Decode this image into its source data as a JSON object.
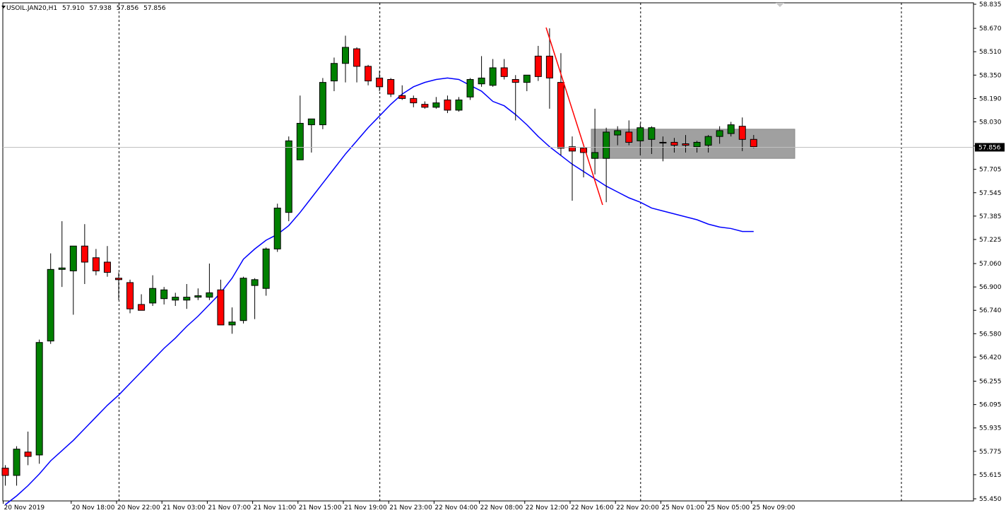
{
  "header": {
    "symbol": "USOIL.JAN20,H1",
    "open": "57.910",
    "high": "57.938",
    "low": "57.856",
    "close": "57.856"
  },
  "colors": {
    "bull": "#008000",
    "bear": "#ff0000",
    "ma": "#0000ff",
    "trendline": "#ff0000",
    "zone": "#a0a0a0",
    "grid": "#000000",
    "price_line": "#c0c0c0"
  },
  "chart_data": {
    "type": "candlestick",
    "ylim": [
      55.45,
      58.835
    ],
    "y_ticks": [
      "58.835",
      "58.670",
      "58.510",
      "58.350",
      "58.190",
      "58.030",
      "57.865",
      "57.705",
      "57.545",
      "57.385",
      "57.225",
      "57.060",
      "56.900",
      "56.740",
      "56.580",
      "56.420",
      "56.255",
      "56.095",
      "55.935",
      "55.775",
      "55.615",
      "55.450"
    ],
    "x_ticks": [
      {
        "label": "20 Nov 2019",
        "index": 0
      },
      {
        "label": "20 Nov 18:00",
        "index": 6
      },
      {
        "label": "20 Nov 22:00",
        "index": 10
      },
      {
        "label": "21 Nov 03:00",
        "index": 14
      },
      {
        "label": "21 Nov 07:00",
        "index": 18
      },
      {
        "label": "21 Nov 11:00",
        "index": 22
      },
      {
        "label": "21 Nov 15:00",
        "index": 26
      },
      {
        "label": "21 Nov 19:00",
        "index": 30
      },
      {
        "label": "21 Nov 23:00",
        "index": 34
      },
      {
        "label": "22 Nov 04:00",
        "index": 38
      },
      {
        "label": "22 Nov 08:00",
        "index": 42
      },
      {
        "label": "22 Nov 12:00",
        "index": 46
      },
      {
        "label": "22 Nov 16:00",
        "index": 50
      },
      {
        "label": "22 Nov 20:00",
        "index": 54
      },
      {
        "label": "25 Nov 01:00",
        "index": 58
      },
      {
        "label": "25 Nov 05:00",
        "index": 62
      },
      {
        "label": "25 Nov 09:00",
        "index": 66
      }
    ],
    "separators": [
      10,
      33,
      56,
      79
    ],
    "current_price": "57.856",
    "candles": [
      [
        55.66,
        55.68,
        55.54,
        55.61
      ],
      [
        55.61,
        55.81,
        55.54,
        55.79
      ],
      [
        55.77,
        55.91,
        55.68,
        55.74
      ],
      [
        55.75,
        56.54,
        55.69,
        56.52
      ],
      [
        56.53,
        57.13,
        56.51,
        57.02
      ],
      [
        57.02,
        57.35,
        56.9,
        57.03
      ],
      [
        57.01,
        57.18,
        56.71,
        57.18
      ],
      [
        57.18,
        57.33,
        56.92,
        57.07
      ],
      [
        57.1,
        57.16,
        56.98,
        57.01
      ],
      [
        57.07,
        57.18,
        56.97,
        57.0
      ],
      [
        56.96,
        57.0,
        56.81,
        56.95
      ],
      [
        56.93,
        56.95,
        56.72,
        56.75
      ],
      [
        56.78,
        56.85,
        56.74,
        56.74
      ],
      [
        56.79,
        56.98,
        56.77,
        56.89
      ],
      [
        56.82,
        56.9,
        56.78,
        56.88
      ],
      [
        56.81,
        56.86,
        56.77,
        56.83
      ],
      [
        56.81,
        56.92,
        56.75,
        56.83
      ],
      [
        56.83,
        56.89,
        56.81,
        56.84
      ],
      [
        56.83,
        57.06,
        56.81,
        56.86
      ],
      [
        56.88,
        56.95,
        56.67,
        56.64
      ],
      [
        56.64,
        56.76,
        56.58,
        56.66
      ],
      [
        56.67,
        56.97,
        56.65,
        56.96
      ],
      [
        56.91,
        56.96,
        56.68,
        56.95
      ],
      [
        56.89,
        57.17,
        56.84,
        57.16
      ],
      [
        57.16,
        57.47,
        57.14,
        57.44
      ],
      [
        57.41,
        57.93,
        57.35,
        57.9
      ],
      [
        57.77,
        58.21,
        57.79,
        58.02
      ],
      [
        58.01,
        58.03,
        57.82,
        58.05
      ],
      [
        58.01,
        58.33,
        57.98,
        58.3
      ],
      [
        58.31,
        58.47,
        58.24,
        58.43
      ],
      [
        58.43,
        58.62,
        58.3,
        58.54
      ],
      [
        58.53,
        58.54,
        58.3,
        58.41
      ],
      [
        58.41,
        58.42,
        58.28,
        58.31
      ],
      [
        58.33,
        58.38,
        58.24,
        58.27
      ],
      [
        58.32,
        58.33,
        58.2,
        58.22
      ],
      [
        58.21,
        58.28,
        58.18,
        58.19
      ],
      [
        58.19,
        58.21,
        58.13,
        58.16
      ],
      [
        58.15,
        58.17,
        58.12,
        58.13
      ],
      [
        58.13,
        58.2,
        58.12,
        58.16
      ],
      [
        58.18,
        58.21,
        58.09,
        58.11
      ],
      [
        58.11,
        58.2,
        58.1,
        58.18
      ],
      [
        58.2,
        58.33,
        58.18,
        58.32
      ],
      [
        58.29,
        58.48,
        58.27,
        58.33
      ],
      [
        58.28,
        58.46,
        58.27,
        58.4
      ],
      [
        58.4,
        58.46,
        58.32,
        58.34
      ],
      [
        58.32,
        58.35,
        58.04,
        58.3
      ],
      [
        58.3,
        58.34,
        58.24,
        58.35
      ],
      [
        58.48,
        58.55,
        58.31,
        58.34
      ],
      [
        58.48,
        58.67,
        58.12,
        58.33
      ],
      [
        58.3,
        58.5,
        57.8,
        57.85
      ],
      [
        57.86,
        57.93,
        57.49,
        57.83
      ],
      [
        57.85,
        57.86,
        57.65,
        57.82
      ],
      [
        57.78,
        58.12,
        57.67,
        57.82
      ],
      [
        57.78,
        57.99,
        57.48,
        57.96
      ],
      [
        57.94,
        58.0,
        57.87,
        57.97
      ],
      [
        57.96,
        58.04,
        57.87,
        57.89
      ],
      [
        57.9,
        58.02,
        57.8,
        57.99
      ],
      [
        57.91,
        58.0,
        57.81,
        57.99
      ],
      [
        57.89,
        57.93,
        57.76,
        57.89
      ],
      [
        57.89,
        57.92,
        57.82,
        57.87
      ],
      [
        57.88,
        57.94,
        57.82,
        57.87
      ],
      [
        57.86,
        57.9,
        57.82,
        57.89
      ],
      [
        57.87,
        57.94,
        57.82,
        57.93
      ],
      [
        57.93,
        58.0,
        57.88,
        57.97
      ],
      [
        57.95,
        58.03,
        57.93,
        58.01
      ],
      [
        58.0,
        58.06,
        57.83,
        57.91
      ],
      [
        57.91,
        57.94,
        57.85,
        57.86
      ]
    ],
    "ma_series": [
      55.41,
      55.47,
      55.54,
      55.62,
      55.71,
      55.78,
      55.85,
      55.93,
      56.01,
      56.09,
      56.16,
      56.24,
      56.32,
      56.4,
      56.48,
      56.55,
      56.63,
      56.7,
      56.78,
      56.86,
      56.96,
      57.09,
      57.16,
      57.22,
      57.26,
      57.32,
      57.41,
      57.51,
      57.61,
      57.71,
      57.81,
      57.9,
      57.99,
      58.07,
      58.15,
      58.22,
      58.27,
      58.3,
      58.32,
      58.33,
      58.32,
      58.28,
      58.24,
      58.17,
      58.14,
      58.08,
      58.01,
      57.93,
      57.86,
      57.8,
      57.74,
      57.69,
      57.64,
      57.59,
      57.55,
      57.51,
      57.48,
      57.44,
      57.42,
      57.4,
      57.38,
      57.36,
      57.33,
      57.31,
      57.3,
      57.28,
      57.28
    ]
  }
}
